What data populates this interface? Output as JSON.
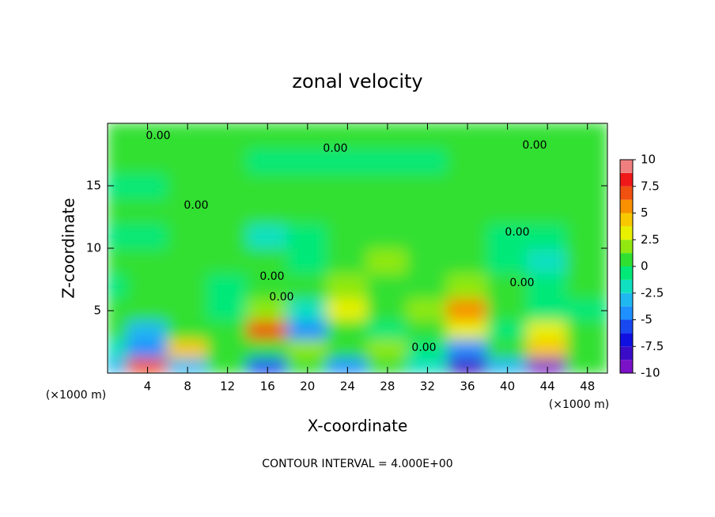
{
  "chart_data": {
    "type": "contour",
    "title": "zonal velocity",
    "x_label": "X-coordinate",
    "y_label": "Z-coordinate",
    "x_unit": "(×1000 m)",
    "y_unit": "(×1000 m)",
    "footnote": "CONTOUR INTERVAL = 4.000E+00",
    "contour_label": "0.00",
    "xlim": [
      0,
      50
    ],
    "ylim": [
      0,
      20
    ],
    "xticks": [
      4,
      8,
      12,
      16,
      20,
      24,
      28,
      32,
      36,
      40,
      44,
      48
    ],
    "yticks": [
      5,
      10,
      15
    ],
    "x": [
      0,
      4,
      8,
      12,
      16,
      20,
      24,
      28,
      32,
      36,
      40,
      44,
      48
    ],
    "y": [
      0.5,
      2,
      3.5,
      5,
      7,
      9,
      11,
      13,
      15,
      17,
      19
    ],
    "z": [
      [
        -3,
        7,
        -3,
        1,
        -6,
        1,
        -4,
        1,
        -2,
        -8,
        -3,
        -9,
        0
      ],
      [
        -2,
        -5,
        4,
        0,
        1,
        2,
        0,
        2,
        -1,
        -4,
        0,
        4,
        1
      ],
      [
        1,
        -3,
        1,
        0,
        7,
        -5,
        1,
        -1,
        1,
        3,
        -1,
        3,
        0
      ],
      [
        0,
        0,
        1,
        -1,
        2,
        -2,
        3,
        1,
        2,
        6,
        1,
        -1,
        -1
      ],
      [
        -1,
        0,
        0,
        -1,
        1,
        1,
        2,
        1,
        1,
        2,
        0,
        -1,
        0
      ],
      [
        0,
        1,
        1,
        1,
        0,
        -1,
        1,
        2,
        1,
        0,
        -1,
        -2,
        0
      ],
      [
        -1,
        -1,
        1,
        0,
        -2,
        -1,
        1,
        1,
        1,
        0,
        -1,
        -1,
        0
      ],
      [
        0,
        1,
        1,
        1,
        1,
        1,
        1,
        1,
        0,
        0,
        0,
        1,
        0
      ],
      [
        -1,
        -1,
        0,
        1,
        1,
        1,
        0,
        0,
        1,
        1,
        0,
        1,
        0
      ],
      [
        1,
        1,
        1,
        0,
        -1,
        -1,
        -1,
        -1,
        -1,
        0,
        0,
        1,
        1
      ],
      [
        0,
        1,
        1,
        0,
        0,
        0,
        0,
        1,
        1,
        1,
        0,
        0,
        0
      ]
    ],
    "levels": [
      -10,
      -8.75,
      -7.5,
      -6.25,
      -5,
      -3.75,
      -2.5,
      -1.25,
      0,
      1.25,
      2.5,
      3.75,
      5,
      6.25,
      7.5,
      8.75,
      10
    ],
    "colors": [
      "#7b12c8",
      "#3a0cc8",
      "#1010e0",
      "#1848f0",
      "#1e90ff",
      "#20b8f0",
      "#10e0c0",
      "#00e878",
      "#30e030",
      "#90e810",
      "#e8f000",
      "#f8c800",
      "#f89000",
      "#f05010",
      "#f01818",
      "#f08080"
    ],
    "cticks": [
      -10,
      -7.5,
      -5,
      -2.5,
      0,
      2.5,
      5,
      7.5,
      10
    ]
  }
}
